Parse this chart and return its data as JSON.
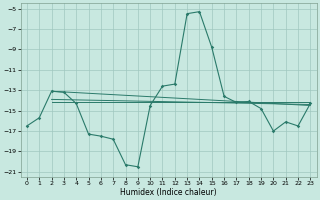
{
  "xlabel": "Humidex (Indice chaleur)",
  "xlim": [
    -0.5,
    23.5
  ],
  "ylim": [
    -21.5,
    -4.5
  ],
  "yticks": [
    -5,
    -7,
    -9,
    -11,
    -13,
    -15,
    -17,
    -19,
    -21
  ],
  "xticks": [
    0,
    1,
    2,
    3,
    4,
    5,
    6,
    7,
    8,
    9,
    10,
    11,
    12,
    13,
    14,
    15,
    16,
    17,
    18,
    19,
    20,
    21,
    22,
    23
  ],
  "bg_color": "#c8e8e0",
  "grid_color": "#a0c8c0",
  "line_color": "#2a7a6a",
  "main_line": {
    "x": [
      0,
      1,
      2,
      3,
      4,
      5,
      6,
      7,
      8,
      9,
      10,
      11,
      12,
      13,
      14,
      15,
      16,
      17,
      18,
      19,
      20,
      21,
      22,
      23
    ],
    "y": [
      -16.5,
      -15.7,
      -13.1,
      -13.2,
      -14.3,
      -17.3,
      -17.5,
      -17.8,
      -20.3,
      -20.5,
      -14.5,
      -12.6,
      -12.4,
      -5.5,
      -5.3,
      -8.8,
      -13.6,
      -14.2,
      -14.1,
      -14.8,
      -17.0,
      -16.1,
      -16.5,
      -14.3
    ]
  },
  "reg_line1": {
    "x": [
      0,
      2,
      23
    ],
    "y": [
      -13.5,
      -13.1,
      -14.3
    ]
  },
  "reg_line2": {
    "x": [
      0,
      23
    ],
    "y": [
      -13.1,
      -14.5
    ]
  },
  "horiz_line": {
    "x": [
      2,
      23
    ],
    "y": [
      -13.9,
      -13.9
    ]
  },
  "reg_line3": {
    "x": [
      2,
      23
    ],
    "y": [
      -14.2,
      -14.2
    ]
  }
}
